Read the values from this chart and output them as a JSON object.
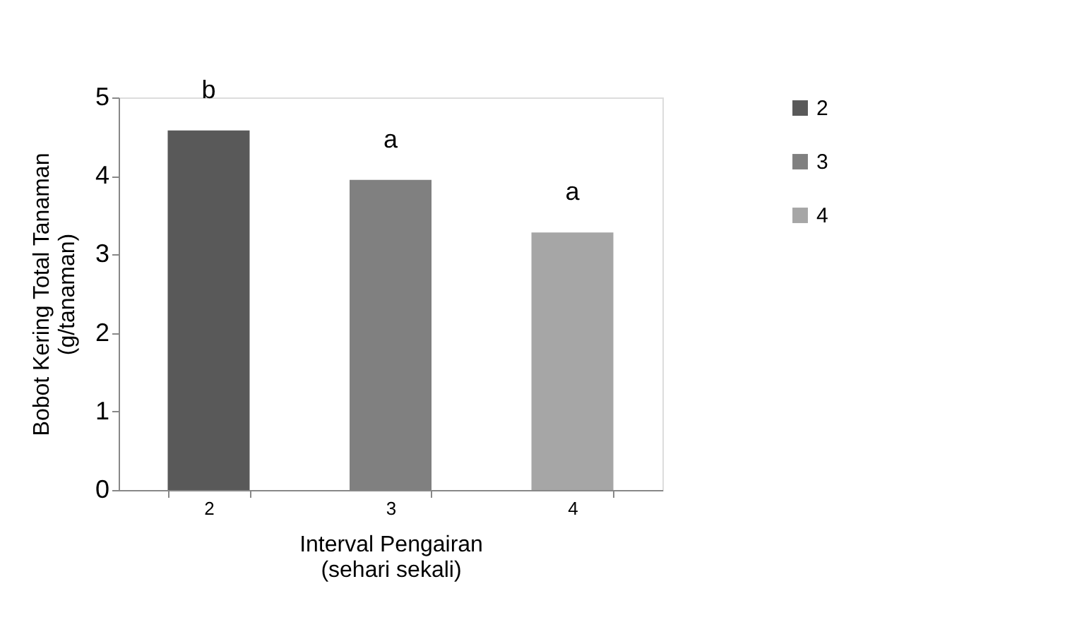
{
  "chart_data": {
    "type": "bar",
    "xlabel": "Interval Pengairan\n(sehari sekali)",
    "ylabel": "Bobot Kering Total Tanaman\n(g/tanaman)",
    "categories": [
      "2",
      "3",
      "4"
    ],
    "series": [
      {
        "name": "2",
        "color": "#595959",
        "values": [
          4.58,
          null,
          null
        ]
      },
      {
        "name": "3",
        "color": "#808080",
        "values": [
          null,
          3.95,
          null
        ]
      },
      {
        "name": "4",
        "color": "#a6a6a6",
        "values": [
          null,
          null,
          3.28
        ]
      }
    ],
    "ylim": [
      0,
      5
    ],
    "yticks": [
      0,
      1,
      2,
      3,
      4,
      5
    ],
    "grid": false,
    "legend": "right",
    "annotations": [
      {
        "text": "b",
        "x": "2",
        "y": 4.58
      },
      {
        "text": "a",
        "x": "3",
        "y": 3.95
      },
      {
        "text": "a",
        "x": "4",
        "y": 3.28
      }
    ]
  }
}
